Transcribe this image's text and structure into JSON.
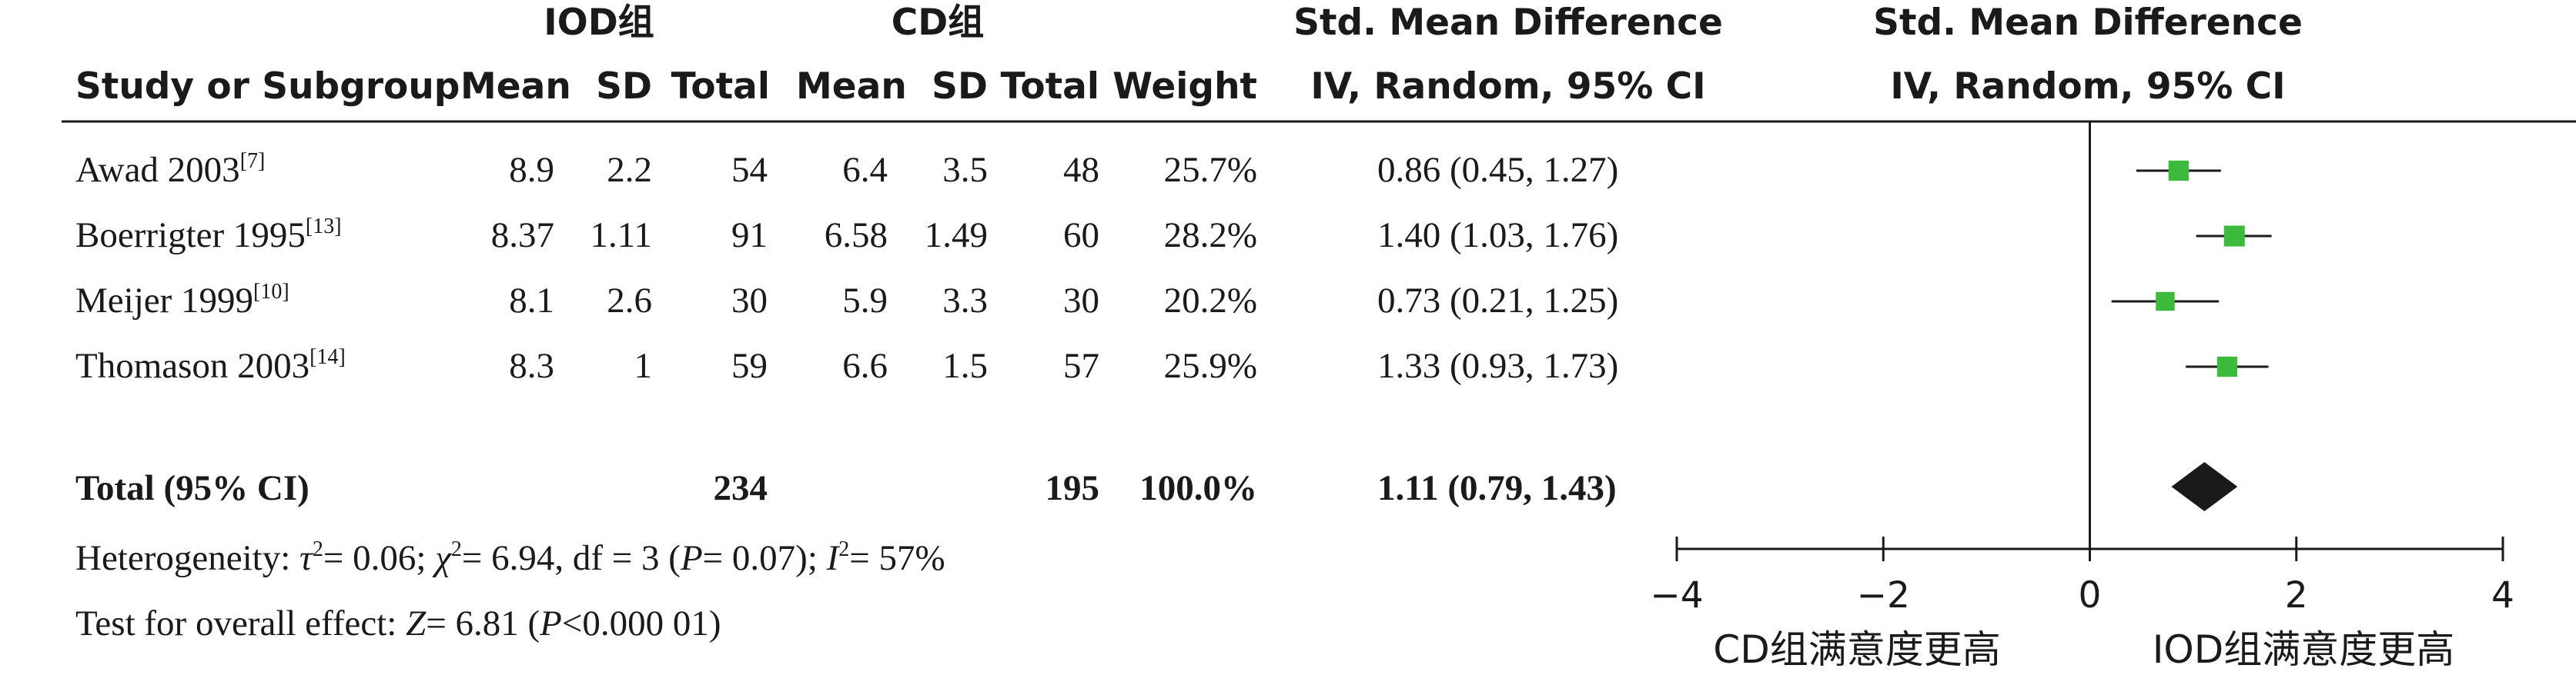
{
  "headers": {
    "group1": "IOD组",
    "group2": "CD组",
    "smd_title": "Std. Mean Difference",
    "smd_method": "IV, Random, 95% CI",
    "plot_title": "Std. Mean Difference",
    "plot_method": "IV, Random, 95% CI",
    "study": "Study or Subgroup",
    "mean": "Mean",
    "sd": "SD",
    "total": "Total",
    "weight": "Weight"
  },
  "studies": [
    {
      "name": "Awad 2003",
      "ref": "[7]",
      "m1": "8.9",
      "sd1": "2.2",
      "n1": "54",
      "m2": "6.4",
      "sd2": "3.5",
      "n2": "48",
      "weight": "25.7%",
      "ci_text": "0.86 (0.45, 1.27)"
    },
    {
      "name": "Boerrigter 1995",
      "ref": "[13]",
      "m1": "8.37",
      "sd1": "1.11",
      "n1": "91",
      "m2": "6.58",
      "sd2": "1.49",
      "n2": "60",
      "weight": "28.2%",
      "ci_text": "1.40 (1.03, 1.76)"
    },
    {
      "name": "Meijer 1999",
      "ref": "[10]",
      "m1": "8.1",
      "sd1": "2.6",
      "n1": "30",
      "m2": "5.9",
      "sd2": "3.3",
      "n2": "30",
      "weight": "20.2%",
      "ci_text": "0.73 (0.21, 1.25)"
    },
    {
      "name": "Thomason 2003",
      "ref": "[14]",
      "m1": "8.3",
      "sd1": "1",
      "n1": "59",
      "m2": "6.6",
      "sd2": "1.5",
      "n2": "57",
      "weight": "25.9%",
      "ci_text": "1.33 (0.93, 1.73)"
    }
  ],
  "total": {
    "label": "Total (95% CI)",
    "n1": "234",
    "n2": "195",
    "weight": "100.0%",
    "ci_text": "1.11 (0.79, 1.43)"
  },
  "footer": {
    "heterogeneity": {
      "prefix": "Heterogeneity: ",
      "tau": "τ",
      "tau_val": "= 0.06; ",
      "chi": "χ",
      "chi_val": "= 6.94, df = 3 (",
      "p": "P",
      "p_val": "= 0.07); ",
      "i": "I",
      "i_val": "= 57%",
      "sq": "2"
    },
    "overall": {
      "prefix": "Test for overall effect: ",
      "z": "Z",
      "z_val": "= 6.81 (",
      "p": "P",
      "p_val": "<0.000 01)"
    }
  },
  "axis": {
    "ticks": [
      -4,
      -2,
      0,
      2,
      4
    ],
    "tick_labels": [
      "−4",
      "−2",
      "0",
      "2",
      "4"
    ],
    "favor_left": "CD组满意度更高",
    "favor_right": "IOD组满意度更高"
  },
  "colors": {
    "marker": "#3cba3c",
    "diamond": "#1a1a1a",
    "line": "#1a1a1a"
  },
  "chart_data": {
    "type": "forest",
    "xlim": [
      -4,
      4
    ],
    "ticks": [
      -4,
      -2,
      0,
      2,
      4
    ],
    "studies": [
      {
        "name": "Awad 2003",
        "est": 0.86,
        "lo": 0.45,
        "hi": 1.27,
        "weight": 25.7
      },
      {
        "name": "Boerrigter 1995",
        "est": 1.4,
        "lo": 1.03,
        "hi": 1.76,
        "weight": 28.2
      },
      {
        "name": "Meijer 1999",
        "est": 0.73,
        "lo": 0.21,
        "hi": 1.25,
        "weight": 20.2
      },
      {
        "name": "Thomason 2003",
        "est": 1.33,
        "lo": 0.93,
        "hi": 1.73,
        "weight": 25.9
      }
    ],
    "pooled": {
      "est": 1.11,
      "lo": 0.79,
      "hi": 1.43
    }
  }
}
